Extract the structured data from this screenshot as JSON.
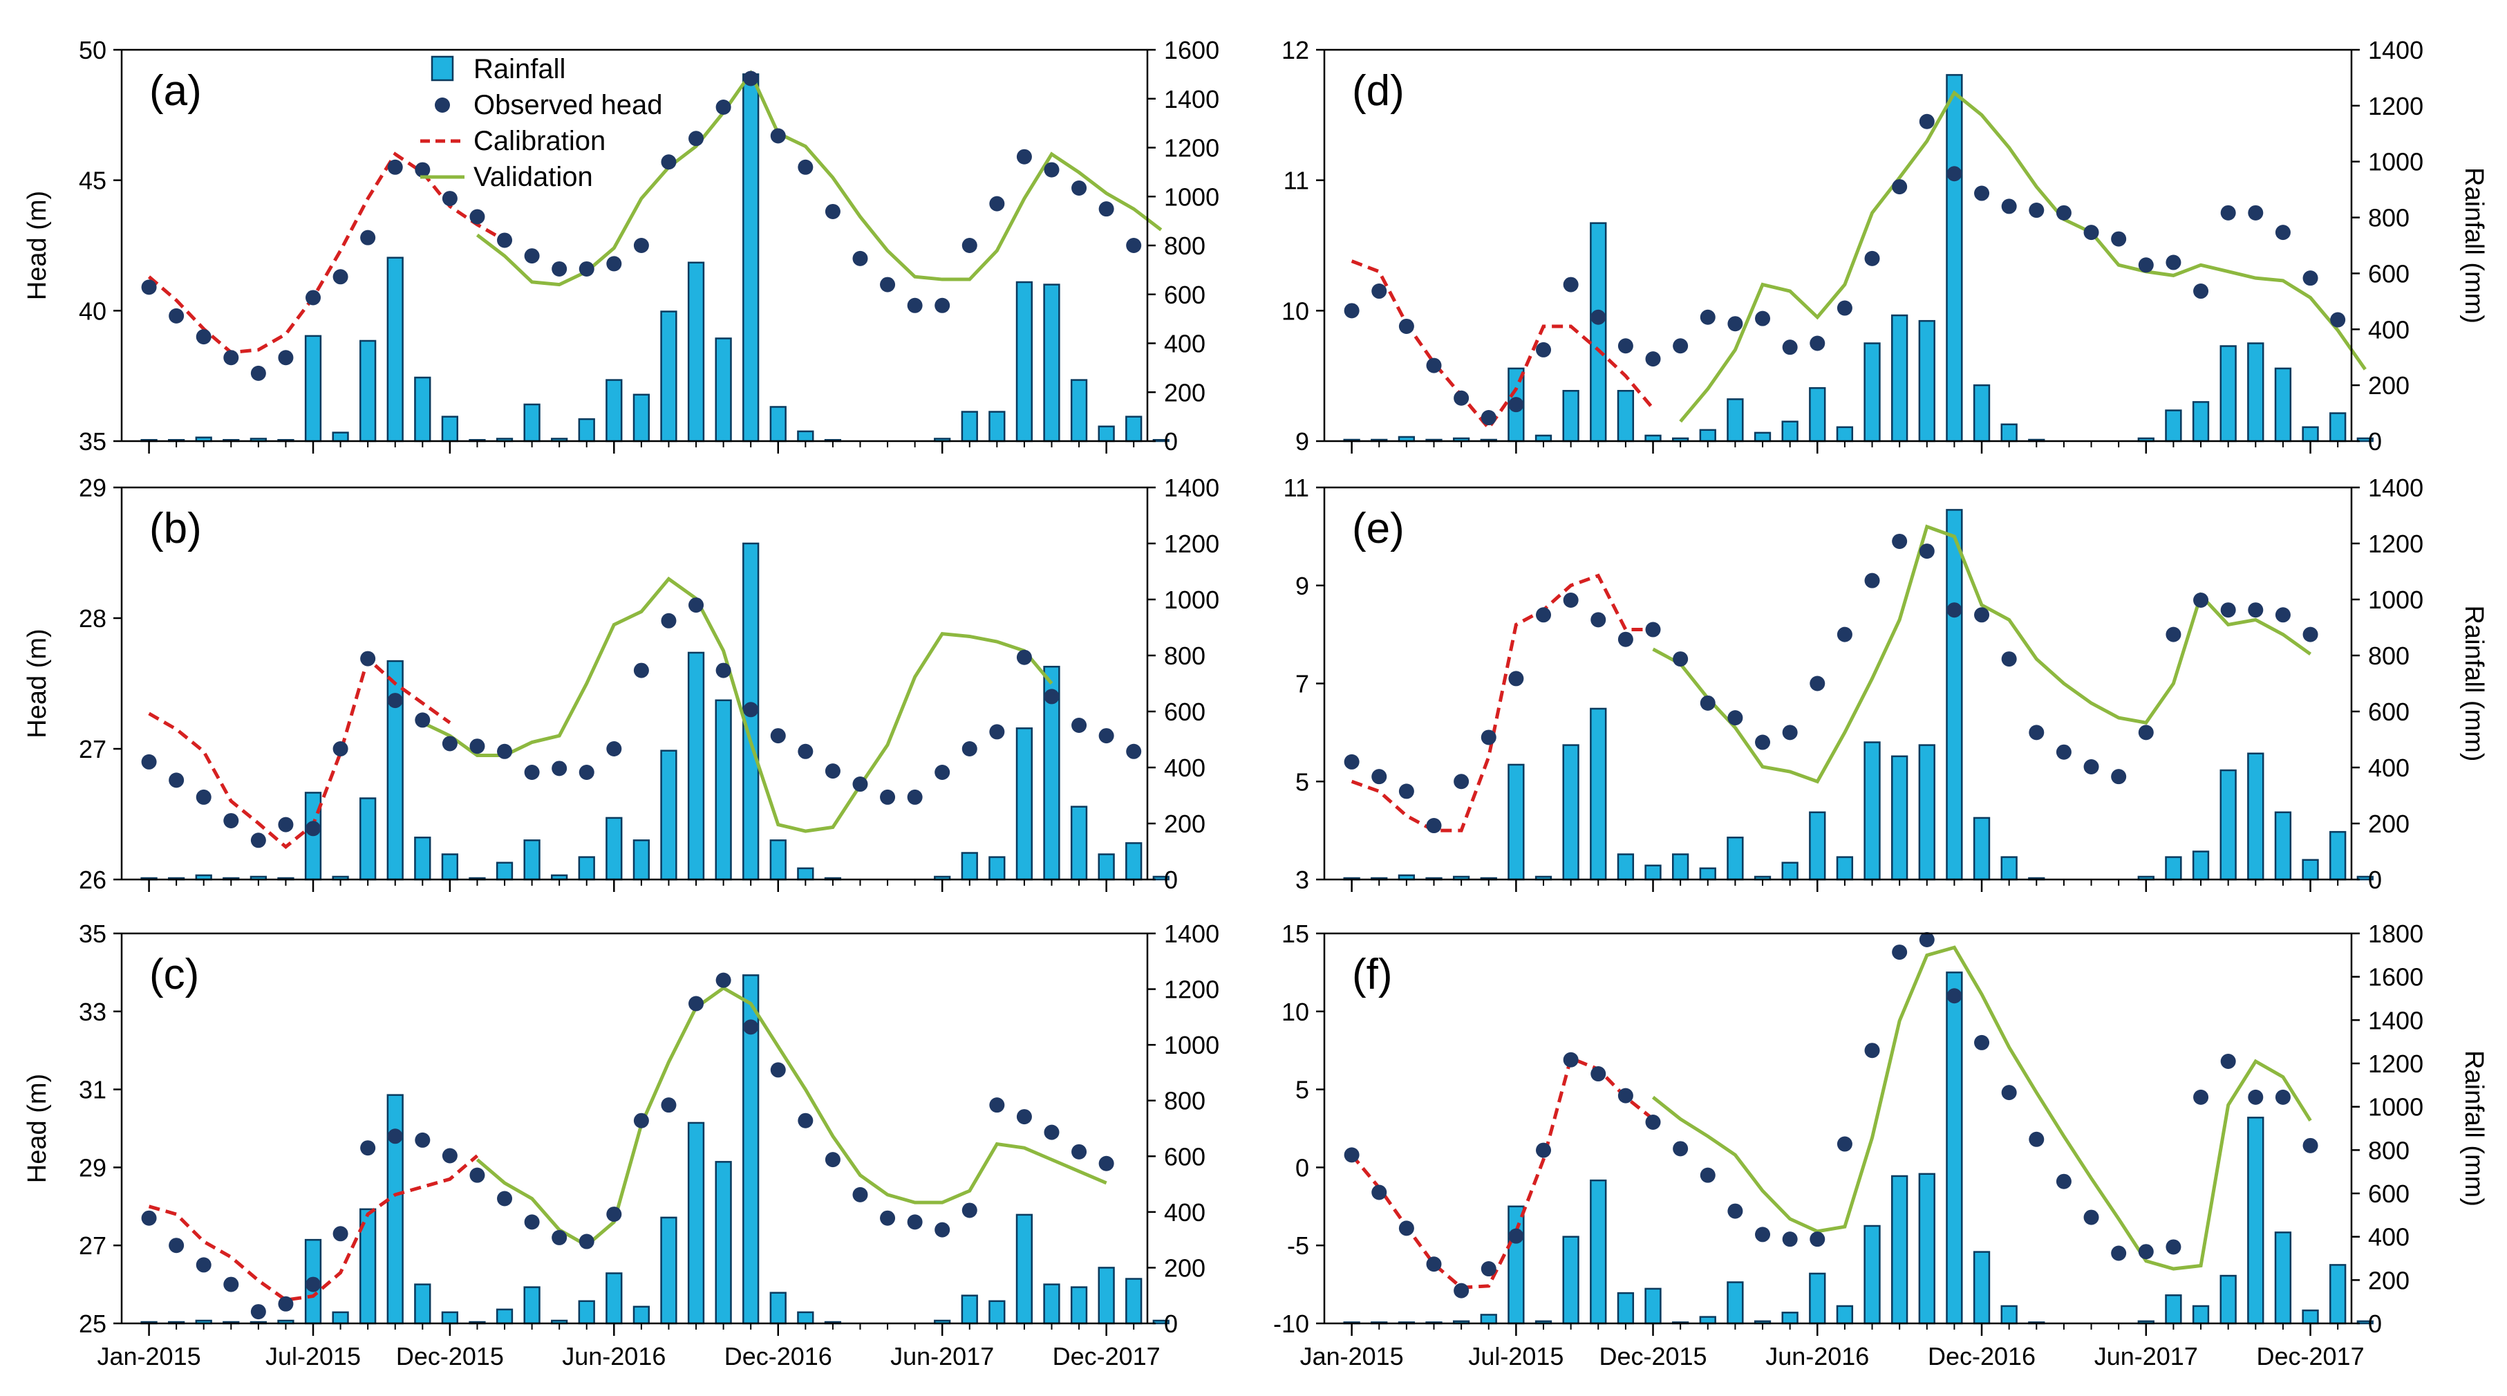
{
  "figure": {
    "x_tick_labels": [
      "Jan-2015",
      "Jul-2015",
      "Dec-2015",
      "Jun-2016",
      "Dec-2016",
      "Jun-2017",
      "Dec-2017"
    ],
    "x_tick_months": [
      0,
      6,
      11,
      17,
      23,
      29,
      35
    ],
    "legend": {
      "rainfall": "Rainfall",
      "observed": "Observed head",
      "calibration": "Calibration",
      "validation": "Validation"
    },
    "colors": {
      "bar_fill": "#20B2E0",
      "bar_stroke": "#0a3a5e",
      "observed": "#1F3864",
      "calibration": "#D62020",
      "validation": "#8DB83F"
    }
  },
  "chart_data": [
    {
      "type": "bar+scatter+line",
      "panel": "(a)",
      "ylabel": "Head (m)",
      "y2label": "",
      "ylim": [
        35,
        50
      ],
      "yticks": [
        35,
        40,
        45,
        50
      ],
      "y2lim": [
        0,
        1600
      ],
      "y2ticks": [
        0,
        200,
        400,
        600,
        800,
        1000,
        1200,
        1400,
        1600
      ],
      "rainfall": [
        5,
        5,
        15,
        5,
        10,
        5,
        430,
        35,
        410,
        750,
        260,
        100,
        5,
        10,
        150,
        10,
        90,
        250,
        190,
        530,
        730,
        420,
        1500,
        140,
        40,
        5,
        0,
        0,
        0,
        10,
        120,
        120,
        650,
        640,
        250,
        60,
        100,
        5
      ],
      "observed": [
        40.9,
        39.8,
        39.0,
        38.2,
        37.6,
        38.2,
        40.5,
        41.3,
        42.8,
        45.5,
        45.4,
        44.3,
        43.6,
        42.7,
        42.1,
        41.6,
        41.6,
        41.8,
        42.5,
        45.7,
        46.6,
        47.8,
        48.9,
        46.7,
        45.5,
        43.8,
        42.0,
        41.0,
        40.2,
        40.2,
        42.5,
        44.1,
        45.9,
        45.4,
        44.7,
        43.9,
        42.5
      ],
      "calibration": [
        41.3,
        40.4,
        39.3,
        38.4,
        38.5,
        39.1,
        40.5,
        42.3,
        44.3,
        46.0,
        45.3,
        44.0,
        43.3,
        42.7
      ],
      "validation": [
        42.9,
        42.1,
        41.1,
        41.0,
        41.5,
        42.4,
        44.3,
        45.5,
        46.3,
        47.6,
        49.1,
        46.8,
        46.3,
        45.1,
        43.6,
        42.3,
        41.3,
        41.2,
        41.2,
        42.3,
        44.3,
        46.0,
        45.3,
        44.5,
        43.9,
        43.1
      ],
      "validation_start": 12
    },
    {
      "type": "bar+scatter+line",
      "panel": "(b)",
      "ylabel": "Head (m)",
      "y2label": "",
      "ylim": [
        26,
        29
      ],
      "yticks": [
        26,
        27,
        28,
        29
      ],
      "y2lim": [
        0,
        1400
      ],
      "y2ticks": [
        0,
        200,
        400,
        600,
        800,
        1000,
        1200,
        1400
      ],
      "rainfall": [
        5,
        5,
        15,
        5,
        10,
        5,
        310,
        10,
        290,
        780,
        150,
        90,
        5,
        60,
        140,
        15,
        80,
        220,
        140,
        460,
        810,
        640,
        1200,
        140,
        40,
        5,
        0,
        0,
        0,
        10,
        95,
        80,
        540,
        760,
        260,
        90,
        130,
        10
      ],
      "observed": [
        26.9,
        26.76,
        26.63,
        26.45,
        26.3,
        26.42,
        26.39,
        27.0,
        27.69,
        27.37,
        27.22,
        27.04,
        27.02,
        26.98,
        26.82,
        26.85,
        26.82,
        27.0,
        27.6,
        27.98,
        28.1,
        27.6,
        27.3,
        27.1,
        26.98,
        26.83,
        26.73,
        26.63,
        26.63,
        26.82,
        27.0,
        27.13,
        27.7,
        27.4,
        27.18,
        27.1,
        26.98
      ],
      "calibration": [
        27.27,
        27.15,
        26.98,
        26.6,
        26.43,
        26.25,
        26.42,
        26.97,
        27.69,
        27.5,
        27.35,
        27.2
      ],
      "validation": [
        27.2,
        27.1,
        26.95,
        26.95,
        27.05,
        27.1,
        27.5,
        27.95,
        28.05,
        28.3,
        28.15,
        27.75,
        27.05,
        26.42,
        26.37,
        26.4,
        26.72,
        27.03,
        27.55,
        27.88,
        27.86,
        27.82,
        27.75,
        27.5
      ],
      "validation_start": 10
    },
    {
      "type": "bar+scatter+line",
      "panel": "(c)",
      "ylabel": "Head (m)",
      "y2label": "",
      "ylim": [
        25,
        35
      ],
      "yticks": [
        25,
        27,
        29,
        31,
        33,
        35
      ],
      "y2lim": [
        0,
        1400
      ],
      "y2ticks": [
        0,
        200,
        400,
        600,
        800,
        1000,
        1200,
        1400
      ],
      "rainfall": [
        5,
        5,
        10,
        5,
        5,
        10,
        300,
        40,
        410,
        820,
        140,
        40,
        5,
        50,
        130,
        10,
        80,
        180,
        60,
        380,
        720,
        580,
        1250,
        110,
        40,
        5,
        0,
        0,
        0,
        10,
        100,
        80,
        390,
        140,
        130,
        200,
        160,
        10
      ],
      "observed": [
        27.7,
        27.0,
        26.5,
        26.0,
        25.3,
        25.5,
        26.0,
        27.3,
        29.5,
        29.8,
        29.7,
        29.3,
        28.8,
        28.2,
        27.6,
        27.2,
        27.1,
        27.8,
        30.2,
        30.6,
        33.2,
        33.8,
        32.6,
        31.5,
        30.2,
        29.2,
        28.3,
        27.7,
        27.6,
        27.4,
        27.9,
        30.6,
        30.3,
        29.9,
        29.4,
        29.1
      ],
      "calibration": [
        28.0,
        27.8,
        27.1,
        26.7,
        26.1,
        25.6,
        25.7,
        26.3,
        27.8,
        28.3,
        28.5,
        28.7,
        29.3
      ],
      "validation": [
        29.2,
        28.6,
        28.2,
        27.4,
        27.0,
        27.6,
        30.1,
        31.7,
        33.1,
        33.6,
        33.2,
        32.1,
        31.0,
        29.8,
        28.8,
        28.3,
        28.1,
        28.1,
        28.4,
        29.6,
        29.5,
        29.2,
        28.9,
        28.6
      ],
      "validation_start": 12
    },
    {
      "type": "bar+scatter+line",
      "panel": "(d)",
      "ylabel": "",
      "y2label": "Rainfall (mm)",
      "ylim": [
        9,
        12
      ],
      "yticks": [
        9,
        10,
        11,
        12
      ],
      "y2lim": [
        0,
        1400
      ],
      "y2ticks": [
        0,
        200,
        400,
        600,
        800,
        1000,
        1200,
        1400
      ],
      "rainfall": [
        5,
        5,
        15,
        5,
        10,
        5,
        260,
        20,
        180,
        780,
        180,
        20,
        10,
        40,
        150,
        30,
        70,
        190,
        50,
        350,
        450,
        430,
        1310,
        200,
        60,
        5,
        0,
        0,
        0,
        10,
        110,
        140,
        340,
        350,
        260,
        50,
        100,
        10
      ],
      "observed": [
        10.0,
        10.15,
        9.88,
        9.58,
        9.33,
        9.18,
        9.28,
        9.7,
        10.2,
        9.95,
        9.73,
        9.63,
        9.73,
        9.95,
        9.9,
        9.94,
        9.72,
        9.75,
        10.02,
        10.4,
        10.95,
        11.45,
        11.05,
        10.9,
        10.8,
        10.77,
        10.75,
        10.6,
        10.55,
        10.35,
        10.37,
        10.15,
        10.75,
        10.75,
        10.6,
        10.25,
        9.93
      ],
      "calibration": [
        10.38,
        10.3,
        9.9,
        9.6,
        9.35,
        9.1,
        9.4,
        9.88,
        9.88,
        9.7,
        9.5,
        9.25
      ],
      "validation": [
        9.15,
        9.4,
        9.7,
        10.2,
        10.15,
        9.95,
        10.2,
        10.75,
        11.02,
        11.3,
        11.67,
        11.5,
        11.25,
        10.95,
        10.7,
        10.6,
        10.35,
        10.3,
        10.27,
        10.35,
        10.3,
        10.25,
        10.23,
        10.1,
        9.85,
        9.55
      ],
      "validation_start": 12
    },
    {
      "type": "bar+scatter+line",
      "panel": "(e)",
      "ylabel": "",
      "y2label": "Rainfall (mm)",
      "ylim": [
        3,
        11
      ],
      "yticks": [
        3,
        5,
        7,
        9,
        11
      ],
      "y2lim": [
        0,
        1400
      ],
      "y2ticks": [
        0,
        200,
        400,
        600,
        800,
        1000,
        1200,
        1400
      ],
      "rainfall": [
        5,
        5,
        15,
        5,
        10,
        5,
        410,
        10,
        480,
        610,
        90,
        50,
        90,
        40,
        150,
        10,
        60,
        240,
        80,
        490,
        440,
        480,
        1320,
        220,
        80,
        5,
        0,
        0,
        0,
        10,
        80,
        100,
        390,
        450,
        240,
        70,
        170,
        10
      ],
      "observed": [
        5.4,
        5.1,
        4.8,
        4.1,
        5.0,
        5.9,
        7.1,
        8.4,
        8.7,
        8.3,
        7.9,
        8.1,
        7.5,
        6.6,
        6.3,
        5.8,
        6.0,
        7.0,
        8.0,
        9.1,
        9.9,
        9.7,
        8.5,
        8.4,
        7.5,
        6.0,
        5.6,
        5.3,
        5.1,
        6.0,
        8.0,
        8.7,
        8.5,
        8.5,
        8.4,
        8.0
      ],
      "calibration": [
        5.0,
        4.8,
        4.3,
        4.0,
        4.0,
        5.5,
        8.2,
        8.5,
        9.0,
        9.2,
        8.1,
        8.1
      ],
      "validation": [
        7.7,
        7.4,
        6.7,
        6.1,
        5.3,
        5.2,
        5.0,
        6.0,
        7.1,
        8.3,
        10.2,
        10.0,
        8.6,
        8.3,
        7.5,
        7.0,
        6.6,
        6.3,
        6.2,
        7.0,
        8.8,
        8.2,
        8.3,
        8.0,
        7.6
      ],
      "validation_start": 11
    },
    {
      "type": "bar+scatter+line",
      "panel": "(f)",
      "ylabel": "",
      "y2label": "Rainfall (mm)",
      "ylim": [
        -10,
        15
      ],
      "yticks": [
        -10,
        -5,
        0,
        5,
        10,
        15
      ],
      "y2lim": [
        0,
        1800
      ],
      "y2ticks": [
        0,
        200,
        400,
        600,
        800,
        1000,
        1200,
        1400,
        1600,
        1800
      ],
      "rainfall": [
        5,
        5,
        5,
        5,
        10,
        40,
        540,
        10,
        400,
        660,
        140,
        160,
        5,
        30,
        190,
        10,
        50,
        230,
        80,
        450,
        680,
        690,
        1620,
        330,
        80,
        5,
        0,
        0,
        0,
        10,
        130,
        80,
        220,
        950,
        420,
        60,
        270,
        10
      ],
      "observed": [
        0.8,
        -1.6,
        -3.9,
        -6.2,
        -7.9,
        -6.5,
        -4.4,
        1.1,
        6.9,
        6.0,
        4.6,
        2.9,
        1.2,
        -0.5,
        -2.8,
        -4.3,
        -4.6,
        -4.6,
        1.5,
        7.5,
        13.8,
        14.6,
        11.0,
        8.0,
        4.8,
        1.8,
        -0.9,
        -3.2,
        -5.5,
        -5.4,
        -5.1,
        4.5,
        6.8,
        4.5,
        4.5,
        1.4
      ],
      "calibration": [
        0.8,
        -1.3,
        -3.8,
        -6.2,
        -7.7,
        -7.6,
        -4.1,
        0.5,
        7.0,
        6.3,
        4.5,
        3.1
      ],
      "validation": [
        4.5,
        3.1,
        2.0,
        0.8,
        -1.5,
        -3.3,
        -4.1,
        -3.8,
        1.9,
        9.4,
        13.6,
        14.1,
        11.1,
        7.7,
        4.8,
        2.0,
        -0.7,
        -3.3,
        -6.0,
        -6.5,
        -6.3,
        4.0,
        6.8,
        5.8,
        3.0
      ],
      "validation_start": 11
    }
  ]
}
